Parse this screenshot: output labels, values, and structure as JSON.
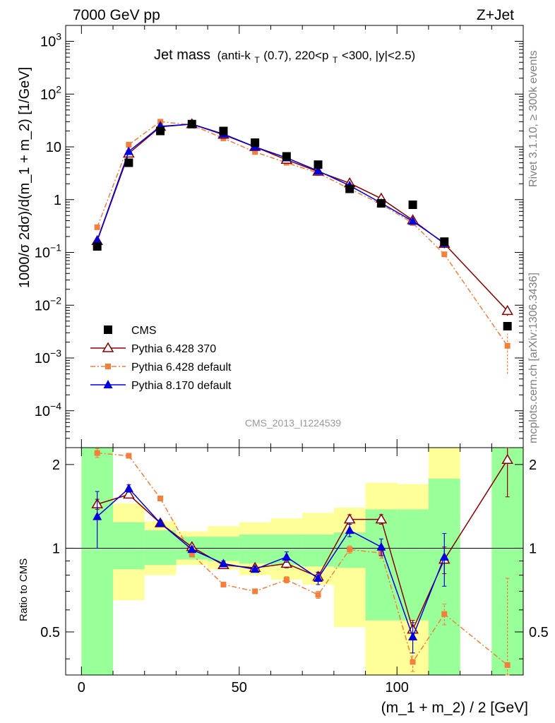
{
  "header": {
    "left": "7000 GeV pp",
    "right": "Z+Jet"
  },
  "side_text": {
    "rivet": "Rivet 3.1.10, ≥ 300k events",
    "mcplots": "mcplots.cern.ch [arXiv:1306.3436]"
  },
  "plot_title": {
    "main": "Jet mass",
    "detail_parts": [
      "(anti-k",
      "T",
      "(0.7), 220<p",
      "T",
      "<300, |y|<2.5)"
    ]
  },
  "analysis_label": "CMS_2013_I1224539",
  "ratio_ylabel": "Ratio to CMS",
  "chart_data": [
    {
      "type": "scatter",
      "title": "Jet mass (anti-kT(0.7), 220<pT<300, |y|<2.5)",
      "ylabel": "1000/σ 2dσ)/d(m_1 + m_2) [1/GeV]",
      "xlabel": "(m_1 + m_2) / 2 [GeV]",
      "xlim": [
        -5,
        140
      ],
      "ylim": [
        2e-05,
        2000
      ],
      "yscale": "log",
      "x_ticks": [
        0,
        50,
        100
      ],
      "y_tick_labels": [
        "10^-4",
        "10^-3",
        "10^-2",
        "10^-1",
        "1",
        "10",
        "10^2",
        "10^3"
      ],
      "legend_position": "lower-left",
      "series": [
        {
          "name": "CMS",
          "color": "#000000",
          "marker": "square",
          "line": "none",
          "x": [
            5,
            15,
            25,
            35,
            45,
            55,
            65,
            75,
            85,
            95,
            105,
            115,
            135
          ],
          "y": [
            0.13,
            5.0,
            20,
            27,
            20,
            12,
            6.6,
            4.6,
            1.6,
            0.85,
            0.8,
            0.16,
            0.004
          ]
        },
        {
          "name": "Pythia 6.428 370",
          "color": "#8b0000",
          "marker": "open-triangle",
          "line": "solid",
          "x": [
            5,
            15,
            25,
            35,
            45,
            55,
            65,
            75,
            85,
            95,
            105,
            115,
            135
          ],
          "y": [
            0.165,
            7.5,
            24,
            27,
            17,
            10,
            5.7,
            3.4,
            2.05,
            1.05,
            0.41,
            0.146,
            0.0078
          ],
          "yerr": [
            0.012,
            0.3,
            0.8,
            0.8,
            0.5,
            0.3,
            0.2,
            0.12,
            0.08,
            0.05,
            0.03,
            0.02,
            0.0015
          ]
        },
        {
          "name": "Pythia 6.428 default",
          "color": "#f47f3a",
          "marker": "filled-square",
          "line": "dashdot",
          "x": [
            5,
            15,
            25,
            35,
            45,
            55,
            65,
            75,
            85,
            95,
            105,
            115,
            135
          ],
          "y": [
            0.3,
            11,
            30,
            26,
            14.5,
            8,
            5,
            3.2,
            1.6,
            0.82,
            0.36,
            0.092,
            0.0017
          ],
          "yerr": [
            0.015,
            0.3,
            0.8,
            0.7,
            0.4,
            0.2,
            0.15,
            0.1,
            0.06,
            0.04,
            0.03,
            0.01,
            0.0012
          ]
        },
        {
          "name": "Pythia 8.170 default",
          "color": "#0000dd",
          "marker": "filled-triangle",
          "line": "solid",
          "x": [
            5,
            15,
            25,
            35,
            45,
            55,
            65,
            75,
            85,
            95,
            105,
            115
          ],
          "y": [
            0.17,
            8.2,
            24.5,
            27,
            17.5,
            10,
            6.2,
            3.5,
            1.85,
            0.86,
            0.39,
            0.15
          ],
          "yerr": [
            0.02,
            0.3,
            0.7,
            0.7,
            0.5,
            0.3,
            0.2,
            0.12,
            0.08,
            0.05,
            0.04,
            0.03
          ]
        }
      ]
    },
    {
      "type": "scatter",
      "title": "",
      "ylabel": "Ratio to CMS",
      "xlabel": "(m_1 + m_2) / 2 [GeV]",
      "xlim": [
        -5,
        140
      ],
      "ylim": [
        0.35,
        2.3
      ],
      "yscale": "log",
      "y_ticks": [
        0.5,
        1,
        2
      ],
      "reference_line": 1,
      "uncertainty_bands": {
        "x_low": [
          0,
          10,
          20,
          30,
          40,
          50,
          60,
          70,
          80,
          90,
          100,
          110,
          130
        ],
        "x_high": [
          10,
          20,
          30,
          40,
          50,
          60,
          70,
          80,
          90,
          100,
          110,
          120,
          140
        ],
        "yellow_low": [
          0.35,
          0.65,
          0.8,
          0.87,
          0.84,
          0.8,
          0.77,
          0.74,
          0.52,
          0.35,
          0.35,
          0.35,
          0.35
        ],
        "yellow_high": [
          2.3,
          1.45,
          1.25,
          1.15,
          1.2,
          1.24,
          1.28,
          1.34,
          1.4,
          1.72,
          1.7,
          2.3,
          2.3
        ],
        "green_low": [
          0.35,
          0.84,
          0.87,
          0.91,
          0.9,
          0.88,
          0.87,
          0.86,
          0.85,
          0.55,
          0.55,
          0.35,
          0.35
        ],
        "green_high": [
          2.3,
          1.24,
          1.16,
          1.1,
          1.1,
          1.12,
          1.12,
          1.12,
          1.14,
          1.38,
          1.38,
          1.78,
          2.3
        ],
        "yellow_color": "#ffff99",
        "green_color": "#99ff99"
      },
      "series": [
        {
          "name": "Pythia 6.428 370",
          "color": "#8b0000",
          "x": [
            5,
            15,
            25,
            35,
            45,
            55,
            65,
            75,
            85,
            95,
            105,
            115,
            135
          ],
          "y": [
            1.44,
            1.56,
            1.23,
            1.01,
            0.87,
            0.85,
            0.88,
            0.79,
            1.27,
            1.27,
            0.51,
            0.91,
            2.08
          ],
          "yerr": [
            0.06,
            0.04,
            0.03,
            0.02,
            0.02,
            0.02,
            0.03,
            0.03,
            0.05,
            0.05,
            0.04,
            0.1,
            0.55
          ]
        },
        {
          "name": "Pythia 6.428 default",
          "color": "#f47f3a",
          "x": [
            5,
            15,
            25,
            35,
            45,
            55,
            65,
            75,
            85,
            95,
            105,
            115,
            135
          ],
          "y": [
            2.2,
            2.15,
            1.51,
            0.95,
            0.74,
            0.7,
            0.77,
            0.68,
            0.99,
            0.96,
            0.39,
            0.58,
            0.38
          ],
          "yerr": [
            0.08,
            0.04,
            0.03,
            0.02,
            0.01,
            0.01,
            0.02,
            0.02,
            0.03,
            0.04,
            0.03,
            0.05,
            0.4
          ]
        },
        {
          "name": "Pythia 8.170 default",
          "color": "#0000dd",
          "x": [
            5,
            15,
            25,
            35,
            45,
            55,
            65,
            75,
            85,
            95,
            105,
            115
          ],
          "y": [
            1.3,
            1.64,
            1.23,
            0.99,
            0.88,
            0.84,
            0.93,
            0.78,
            1.16,
            1.01,
            0.48,
            0.93
          ],
          "yerr": [
            0.3,
            0.05,
            0.03,
            0.02,
            0.02,
            0.02,
            0.04,
            0.04,
            0.06,
            0.07,
            0.06,
            0.2
          ]
        }
      ]
    }
  ]
}
